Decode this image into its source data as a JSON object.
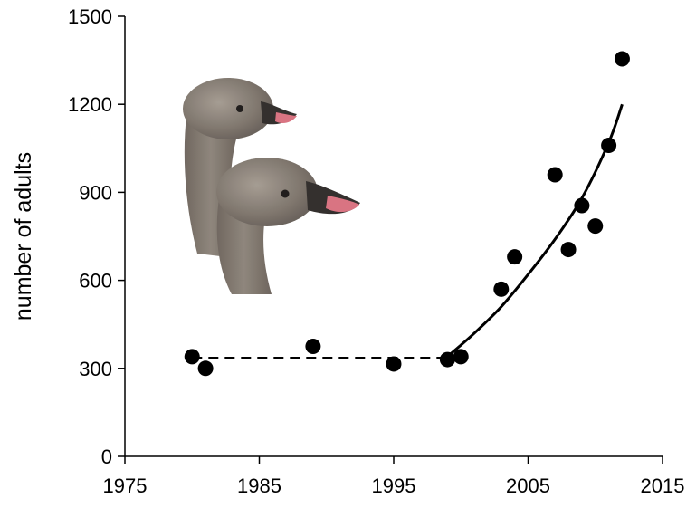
{
  "chart_data": {
    "type": "scatter",
    "title": "",
    "xlabel": "",
    "ylabel": "number of adults",
    "xlim": [
      1975,
      2015
    ],
    "ylim": [
      0,
      1500
    ],
    "xticks": [
      "1975",
      "1985",
      "1995",
      "2005",
      "2015"
    ],
    "yticks": [
      "0",
      "300",
      "600",
      "900",
      "1200",
      "1500"
    ],
    "grid": false,
    "legend": "none",
    "series": [
      {
        "x": [
          1980,
          1981,
          1989,
          1995,
          1999,
          2000,
          2003,
          2004,
          2007,
          2008,
          2009,
          2010,
          2011,
          2012
        ],
        "y": [
          340,
          300,
          375,
          315,
          330,
          340,
          570,
          680,
          960,
          705,
          855,
          785,
          1060,
          1355
        ]
      }
    ],
    "fits": [
      {
        "style": "dashed",
        "x": [
          1980,
          1999
        ],
        "y": [
          335,
          335
        ]
      },
      {
        "style": "solid",
        "x": [
          1999,
          2001,
          2003,
          2005,
          2007,
          2009,
          2011,
          2012
        ],
        "y": [
          340,
          420,
          510,
          620,
          740,
          880,
          1070,
          1200
        ]
      }
    ],
    "illustration": "goose-heads-photo"
  }
}
